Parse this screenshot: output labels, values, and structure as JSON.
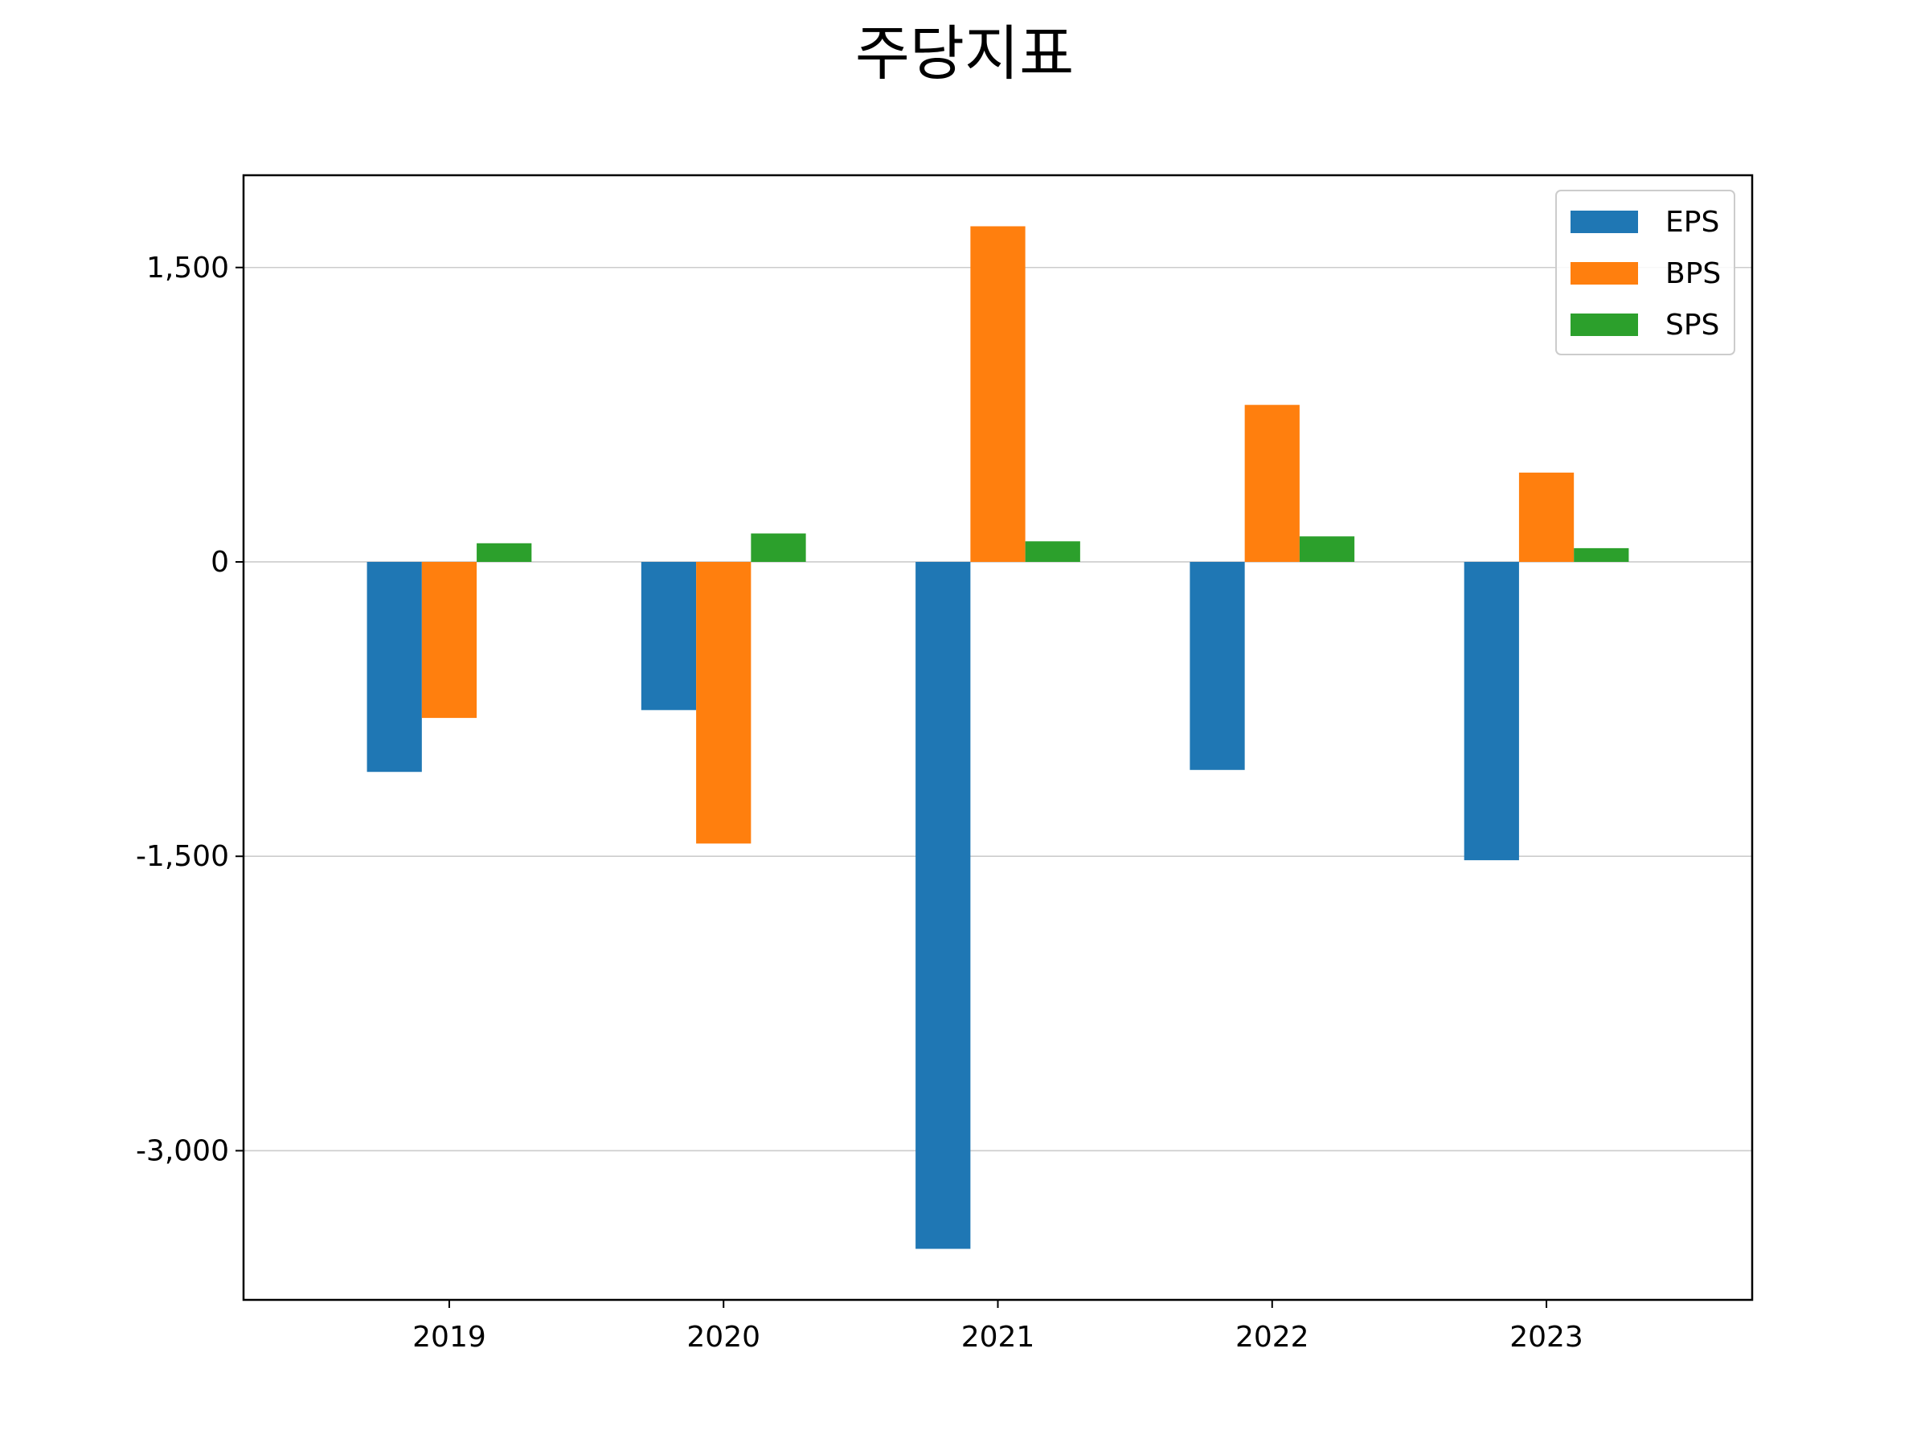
{
  "chart_data": {
    "type": "bar",
    "title": "주당지표",
    "xlabel": "",
    "ylabel": "",
    "categories": [
      "2019",
      "2020",
      "2021",
      "2022",
      "2023"
    ],
    "series": [
      {
        "name": "EPS",
        "color": "#1f77b4",
        "values": [
          -1070,
          -755,
          -3500,
          -1060,
          -1520
        ]
      },
      {
        "name": "BPS",
        "color": "#ff7f0e",
        "values": [
          -795,
          -1435,
          1710,
          800,
          455
        ]
      },
      {
        "name": "SPS",
        "color": "#2ca02c",
        "values": [
          95,
          145,
          105,
          130,
          70
        ]
      }
    ],
    "ylim": [
      -3760,
      1970
    ],
    "yticks": [
      -3000,
      -1500,
      0,
      1500
    ],
    "ytick_labels": [
      "-3,000",
      "-1,500",
      "0",
      "1,500"
    ],
    "grid": {
      "y": true,
      "x": false
    },
    "legend": {
      "position": "top-right"
    }
  }
}
